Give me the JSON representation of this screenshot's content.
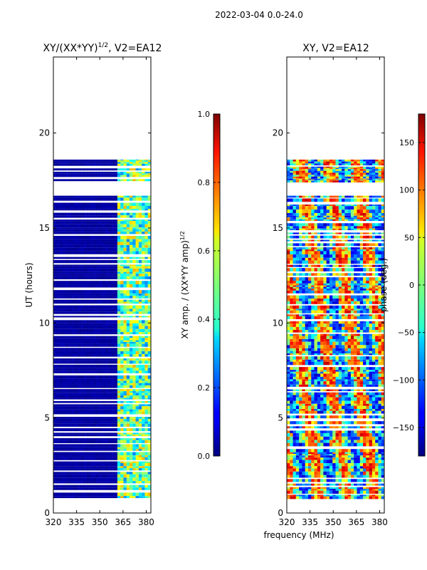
{
  "figure_title": "2022-03-04 0.0-24.0",
  "chart_data": [
    {
      "type": "heatmap",
      "title_base": "XY/(XX*YY)",
      "title_exp": "1/2",
      "title_suffix": ", V2=EA12",
      "xlabel": "",
      "ylabel": "UT (hours)",
      "xlim": [
        320,
        383
      ],
      "ylim": [
        0,
        24
      ],
      "xticks": [
        320,
        335,
        350,
        365,
        380
      ],
      "yticks": [
        0,
        5,
        10,
        15,
        20
      ],
      "data_rows_ut": [
        0.8,
        16.7
      ],
      "data_rows_ut_upper": [
        17.5,
        18.6
      ],
      "flagged_band_mhz": [
        320,
        362
      ],
      "colorbar": {
        "label_base": "XY amp. / (XX*YY amp)",
        "label_exp": "1/2",
        "range": [
          0.0,
          1.0
        ],
        "ticks": [
          "0.0",
          "0.2",
          "0.4",
          "0.6",
          "0.8",
          "1.0"
        ]
      }
    },
    {
      "type": "heatmap",
      "title": "XY, V2=EA12",
      "xlabel": "frequency (MHz)",
      "ylabel": "",
      "xlim": [
        320,
        383
      ],
      "ylim": [
        0,
        24
      ],
      "xticks": [
        320,
        335,
        350,
        365,
        380
      ],
      "yticks": [
        0,
        5,
        10,
        15,
        20
      ],
      "data_rows_ut": [
        0.8,
        16.7
      ],
      "data_rows_ut_upper": [
        17.5,
        18.6
      ],
      "colorbar": {
        "label": "phase (deg.)",
        "range": [
          -180,
          180
        ],
        "ticks": [
          "−150",
          "−100",
          "−50",
          "0",
          "50",
          "100",
          "150"
        ]
      }
    }
  ]
}
